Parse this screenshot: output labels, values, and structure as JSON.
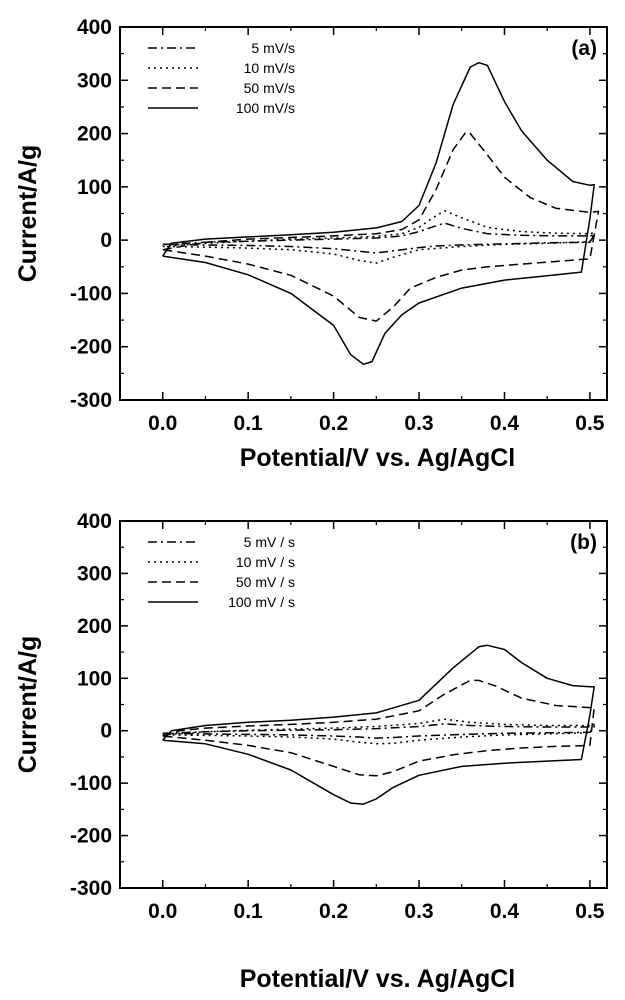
{
  "chart_data": [
    {
      "type": "line",
      "panel_label": "(a)",
      "title": "",
      "xlabel": "Potential/V vs. Ag/AgCl",
      "ylabel": "Current/A/g",
      "xlim": [
        -0.05,
        0.52
      ],
      "ylim": [
        -300,
        400
      ],
      "xticks": [
        "0.0",
        "0.1",
        "0.2",
        "0.3",
        "0.4",
        "0.5"
      ],
      "yticks": [
        "400",
        "300",
        "200",
        "100",
        "0",
        "-100",
        "-200",
        "-300"
      ],
      "grid": false,
      "legend_position": "top-left",
      "series": [
        {
          "name": "5 mV/s",
          "dash": "dashdot",
          "anodic": [
            [
              0,
              -8
            ],
            [
              0.05,
              -4
            ],
            [
              0.1,
              -2
            ],
            [
              0.15,
              0
            ],
            [
              0.2,
              2
            ],
            [
              0.25,
              4
            ],
            [
              0.28,
              8
            ],
            [
              0.3,
              16
            ],
            [
              0.32,
              27
            ],
            [
              0.33,
              32
            ],
            [
              0.35,
              22
            ],
            [
              0.38,
              12
            ],
            [
              0.42,
              9
            ],
            [
              0.46,
              8
            ],
            [
              0.5,
              8
            ],
            [
              0.505,
              10
            ]
          ],
          "cathodic": [
            [
              0.505,
              10
            ],
            [
              0.5,
              -4
            ],
            [
              0.45,
              -5
            ],
            [
              0.4,
              -7
            ],
            [
              0.35,
              -9
            ],
            [
              0.32,
              -11
            ],
            [
              0.3,
              -14
            ],
            [
              0.27,
              -20
            ],
            [
              0.25,
              -24
            ],
            [
              0.23,
              -21
            ],
            [
              0.2,
              -16
            ],
            [
              0.15,
              -12
            ],
            [
              0.1,
              -10
            ],
            [
              0.05,
              -9
            ],
            [
              0,
              -8
            ]
          ]
        },
        {
          "name": "10 mV/s",
          "dash": "dotted",
          "anodic": [
            [
              0,
              -12
            ],
            [
              0.05,
              -6
            ],
            [
              0.1,
              -2
            ],
            [
              0.15,
              2
            ],
            [
              0.2,
              4
            ],
            [
              0.25,
              7
            ],
            [
              0.28,
              12
            ],
            [
              0.3,
              24
            ],
            [
              0.32,
              46
            ],
            [
              0.33,
              55
            ],
            [
              0.35,
              42
            ],
            [
              0.38,
              24
            ],
            [
              0.42,
              16
            ],
            [
              0.46,
              13
            ],
            [
              0.5,
              12
            ],
            [
              0.505,
              14
            ]
          ],
          "cathodic": [
            [
              0.505,
              14
            ],
            [
              0.5,
              -3
            ],
            [
              0.45,
              -6
            ],
            [
              0.4,
              -8
            ],
            [
              0.35,
              -12
            ],
            [
              0.3,
              -18
            ],
            [
              0.27,
              -32
            ],
            [
              0.25,
              -43
            ],
            [
              0.23,
              -38
            ],
            [
              0.2,
              -26
            ],
            [
              0.15,
              -18
            ],
            [
              0.1,
              -15
            ],
            [
              0.05,
              -13
            ],
            [
              0,
              -12
            ]
          ]
        },
        {
          "name": "50 mV/s",
          "dash": "dashed",
          "anodic": [
            [
              0,
              -18
            ],
            [
              0.05,
              -4
            ],
            [
              0.1,
              2
            ],
            [
              0.15,
              5
            ],
            [
              0.2,
              8
            ],
            [
              0.25,
              12
            ],
            [
              0.28,
              20
            ],
            [
              0.3,
              38
            ],
            [
              0.32,
              95
            ],
            [
              0.34,
              170
            ],
            [
              0.355,
              203
            ],
            [
              0.36,
              200
            ],
            [
              0.38,
              160
            ],
            [
              0.4,
              118
            ],
            [
              0.43,
              80
            ],
            [
              0.46,
              60
            ],
            [
              0.5,
              52
            ],
            [
              0.51,
              54
            ]
          ],
          "cathodic": [
            [
              0.51,
              54
            ],
            [
              0.5,
              -35
            ],
            [
              0.46,
              -40
            ],
            [
              0.42,
              -45
            ],
            [
              0.38,
              -50
            ],
            [
              0.35,
              -56
            ],
            [
              0.32,
              -70
            ],
            [
              0.29,
              -90
            ],
            [
              0.27,
              -125
            ],
            [
              0.25,
              -152
            ],
            [
              0.23,
              -145
            ],
            [
              0.2,
              -105
            ],
            [
              0.15,
              -66
            ],
            [
              0.1,
              -45
            ],
            [
              0.05,
              -30
            ],
            [
              0,
              -18
            ]
          ]
        },
        {
          "name": "100 mV/s",
          "dash": "solid",
          "anodic": [
            [
              0,
              -30
            ],
            [
              0.01,
              -6
            ],
            [
              0.05,
              2
            ],
            [
              0.1,
              6
            ],
            [
              0.15,
              10
            ],
            [
              0.2,
              15
            ],
            [
              0.25,
              23
            ],
            [
              0.28,
              35
            ],
            [
              0.3,
              65
            ],
            [
              0.32,
              145
            ],
            [
              0.34,
              255
            ],
            [
              0.36,
              325
            ],
            [
              0.37,
              333
            ],
            [
              0.38,
              328
            ],
            [
              0.4,
              260
            ],
            [
              0.42,
              205
            ],
            [
              0.45,
              150
            ],
            [
              0.48,
              110
            ],
            [
              0.5,
              103
            ],
            [
              0.505,
              104
            ]
          ],
          "cathodic": [
            [
              0.505,
              104
            ],
            [
              0.5,
              40
            ],
            [
              0.49,
              -60
            ],
            [
              0.45,
              -67
            ],
            [
              0.4,
              -75
            ],
            [
              0.35,
              -90
            ],
            [
              0.3,
              -118
            ],
            [
              0.28,
              -140
            ],
            [
              0.26,
              -175
            ],
            [
              0.245,
              -228
            ],
            [
              0.235,
              -233
            ],
            [
              0.22,
              -215
            ],
            [
              0.2,
              -160
            ],
            [
              0.15,
              -100
            ],
            [
              0.1,
              -65
            ],
            [
              0.05,
              -42
            ],
            [
              0,
              -30
            ]
          ]
        }
      ]
    },
    {
      "type": "line",
      "panel_label": "(b)",
      "title": "",
      "xlabel": "Potential/V vs. Ag/AgCl",
      "ylabel": "Current/A/g",
      "xlim": [
        -0.05,
        0.52
      ],
      "ylim": [
        -300,
        400
      ],
      "xticks": [
        "0.0",
        "0.1",
        "0.2",
        "0.3",
        "0.4",
        "0.5"
      ],
      "yticks": [
        "400",
        "300",
        "200",
        "100",
        "0",
        "-100",
        "-200",
        "-300"
      ],
      "grid": false,
      "legend_position": "top-left",
      "series": [
        {
          "name": "5 mV / s",
          "dash": "dashdot",
          "anodic": [
            [
              0,
              -5
            ],
            [
              0.05,
              -2
            ],
            [
              0.1,
              0
            ],
            [
              0.15,
              1
            ],
            [
              0.2,
              2
            ],
            [
              0.25,
              4
            ],
            [
              0.3,
              8
            ],
            [
              0.33,
              13
            ],
            [
              0.36,
              10
            ],
            [
              0.4,
              8
            ],
            [
              0.45,
              7
            ],
            [
              0.5,
              7
            ],
            [
              0.505,
              8
            ]
          ],
          "cathodic": [
            [
              0.505,
              8
            ],
            [
              0.5,
              -3
            ],
            [
              0.45,
              -4
            ],
            [
              0.4,
              -5
            ],
            [
              0.35,
              -7
            ],
            [
              0.3,
              -10
            ],
            [
              0.27,
              -13
            ],
            [
              0.25,
              -14
            ],
            [
              0.23,
              -12
            ],
            [
              0.2,
              -10
            ],
            [
              0.15,
              -8
            ],
            [
              0.1,
              -7
            ],
            [
              0.05,
              -6
            ],
            [
              0,
              -5
            ]
          ]
        },
        {
          "name": "10 mV / s",
          "dash": "dotted",
          "anodic": [
            [
              0,
              -8
            ],
            [
              0.05,
              -2
            ],
            [
              0.1,
              1
            ],
            [
              0.15,
              3
            ],
            [
              0.2,
              5
            ],
            [
              0.25,
              8
            ],
            [
              0.3,
              14
            ],
            [
              0.33,
              22
            ],
            [
              0.36,
              16
            ],
            [
              0.4,
              12
            ],
            [
              0.45,
              10
            ],
            [
              0.5,
              10
            ],
            [
              0.505,
              12
            ]
          ],
          "cathodic": [
            [
              0.505,
              12
            ],
            [
              0.5,
              -4
            ],
            [
              0.45,
              -6
            ],
            [
              0.4,
              -8
            ],
            [
              0.35,
              -12
            ],
            [
              0.3,
              -18
            ],
            [
              0.27,
              -24
            ],
            [
              0.25,
              -25
            ],
            [
              0.23,
              -22
            ],
            [
              0.2,
              -16
            ],
            [
              0.15,
              -12
            ],
            [
              0.1,
              -10
            ],
            [
              0.05,
              -9
            ],
            [
              0,
              -8
            ]
          ]
        },
        {
          "name": "50 mV / s",
          "dash": "dashed",
          "anodic": [
            [
              0,
              -10
            ],
            [
              0.02,
              0
            ],
            [
              0.05,
              5
            ],
            [
              0.1,
              9
            ],
            [
              0.15,
              12
            ],
            [
              0.2,
              16
            ],
            [
              0.25,
              22
            ],
            [
              0.3,
              38
            ],
            [
              0.33,
              70
            ],
            [
              0.36,
              96
            ],
            [
              0.37,
              96
            ],
            [
              0.39,
              85
            ],
            [
              0.42,
              62
            ],
            [
              0.46,
              48
            ],
            [
              0.5,
              44
            ],
            [
              0.505,
              44
            ]
          ],
          "cathodic": [
            [
              0.505,
              44
            ],
            [
              0.5,
              -28
            ],
            [
              0.46,
              -30
            ],
            [
              0.42,
              -33
            ],
            [
              0.38,
              -38
            ],
            [
              0.34,
              -46
            ],
            [
              0.3,
              -58
            ],
            [
              0.27,
              -78
            ],
            [
              0.25,
              -86
            ],
            [
              0.23,
              -84
            ],
            [
              0.2,
              -68
            ],
            [
              0.15,
              -42
            ],
            [
              0.1,
              -28
            ],
            [
              0.05,
              -18
            ],
            [
              0,
              -10
            ]
          ]
        },
        {
          "name": "100 mV / s",
          "dash": "solid",
          "anodic": [
            [
              0,
              -18
            ],
            [
              0.01,
              0
            ],
            [
              0.05,
              10
            ],
            [
              0.1,
              16
            ],
            [
              0.15,
              20
            ],
            [
              0.2,
              26
            ],
            [
              0.25,
              34
            ],
            [
              0.3,
              58
            ],
            [
              0.34,
              120
            ],
            [
              0.37,
              160
            ],
            [
              0.38,
              163
            ],
            [
              0.4,
              155
            ],
            [
              0.42,
              130
            ],
            [
              0.45,
              100
            ],
            [
              0.48,
              86
            ],
            [
              0.5,
              84
            ],
            [
              0.505,
              84
            ]
          ],
          "cathodic": [
            [
              0.505,
              84
            ],
            [
              0.5,
              30
            ],
            [
              0.49,
              -55
            ],
            [
              0.45,
              -58
            ],
            [
              0.4,
              -62
            ],
            [
              0.35,
              -68
            ],
            [
              0.3,
              -85
            ],
            [
              0.27,
              -108
            ],
            [
              0.25,
              -130
            ],
            [
              0.235,
              -140
            ],
            [
              0.22,
              -138
            ],
            [
              0.2,
              -122
            ],
            [
              0.15,
              -75
            ],
            [
              0.1,
              -45
            ],
            [
              0.05,
              -25
            ],
            [
              0,
              -18
            ]
          ]
        }
      ]
    }
  ]
}
